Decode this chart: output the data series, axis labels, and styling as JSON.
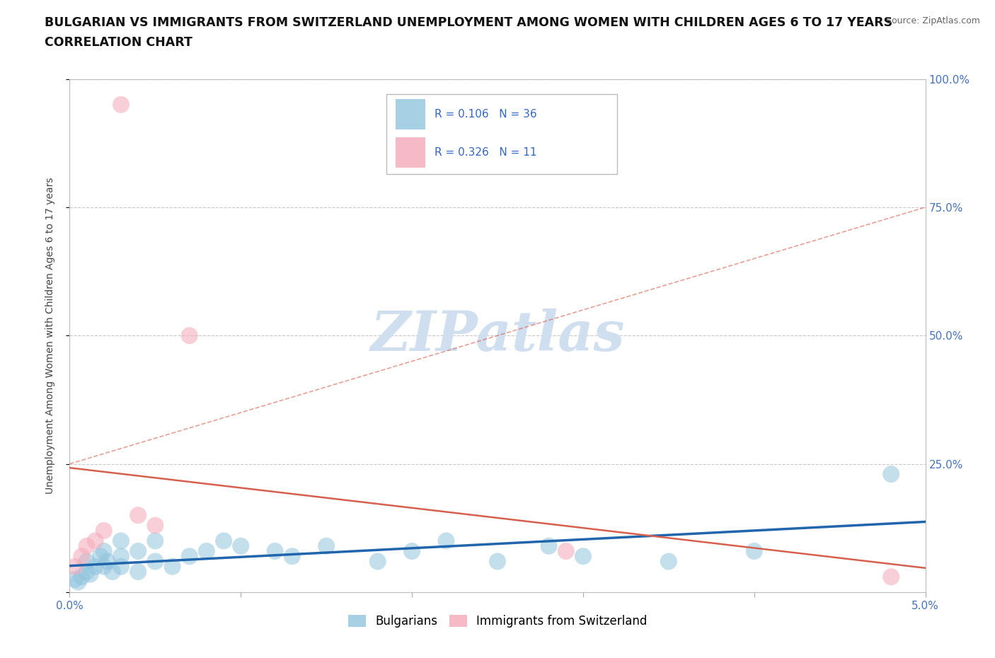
{
  "title_line1": "BULGARIAN VS IMMIGRANTS FROM SWITZERLAND UNEMPLOYMENT AMONG WOMEN WITH CHILDREN AGES 6 TO 17 YEARS",
  "title_line2": "CORRELATION CHART",
  "source": "Source: ZipAtlas.com",
  "ylabel": "Unemployment Among Women with Children Ages 6 to 17 years",
  "xlim": [
    0.0,
    0.05
  ],
  "ylim": [
    0.0,
    1.0
  ],
  "ytick_positions": [
    0.0,
    0.25,
    0.5,
    0.75,
    1.0
  ],
  "ytick_labels": [
    "",
    "25.0%",
    "50.0%",
    "75.0%",
    "100.0%"
  ],
  "xtick_positions": [
    0.0,
    0.01,
    0.02,
    0.03,
    0.04,
    0.05
  ],
  "xtick_labels": [
    "0.0%",
    "",
    "",
    "",
    "",
    "5.0%"
  ],
  "bulgarians_x": [
    0.0003,
    0.0005,
    0.0007,
    0.001,
    0.001,
    0.0012,
    0.0015,
    0.0018,
    0.002,
    0.002,
    0.0022,
    0.0025,
    0.003,
    0.003,
    0.003,
    0.004,
    0.004,
    0.005,
    0.005,
    0.006,
    0.007,
    0.008,
    0.009,
    0.01,
    0.012,
    0.013,
    0.015,
    0.018,
    0.02,
    0.022,
    0.025,
    0.028,
    0.03,
    0.035,
    0.04,
    0.048
  ],
  "bulgarians_y": [
    0.025,
    0.02,
    0.03,
    0.04,
    0.06,
    0.035,
    0.05,
    0.07,
    0.05,
    0.08,
    0.06,
    0.04,
    0.07,
    0.1,
    0.05,
    0.08,
    0.04,
    0.1,
    0.06,
    0.05,
    0.07,
    0.08,
    0.1,
    0.09,
    0.08,
    0.07,
    0.09,
    0.06,
    0.08,
    0.1,
    0.06,
    0.09,
    0.07,
    0.06,
    0.08,
    0.23
  ],
  "swiss_x": [
    0.0003,
    0.0007,
    0.001,
    0.0015,
    0.002,
    0.003,
    0.004,
    0.005,
    0.007,
    0.029,
    0.048
  ],
  "swiss_y": [
    0.05,
    0.07,
    0.09,
    0.1,
    0.12,
    0.95,
    0.15,
    0.13,
    0.5,
    0.08,
    0.03
  ],
  "R_bulgarians": 0.106,
  "N_bulgarians": 36,
  "R_swiss": 0.326,
  "N_swiss": 11,
  "color_bulgarians": "#92c5de",
  "color_swiss": "#f4a9b8",
  "color_trendline_bulgarians": "#2166ac",
  "color_trendline_swiss": "#d6604d",
  "watermark_color": "#d0dff0",
  "grid_color": "#c8c8c8",
  "background_color": "#ffffff",
  "title_fontsize": 12.5,
  "axis_label_fontsize": 10,
  "tick_fontsize": 11,
  "legend_fontsize": 12,
  "source_fontsize": 9
}
